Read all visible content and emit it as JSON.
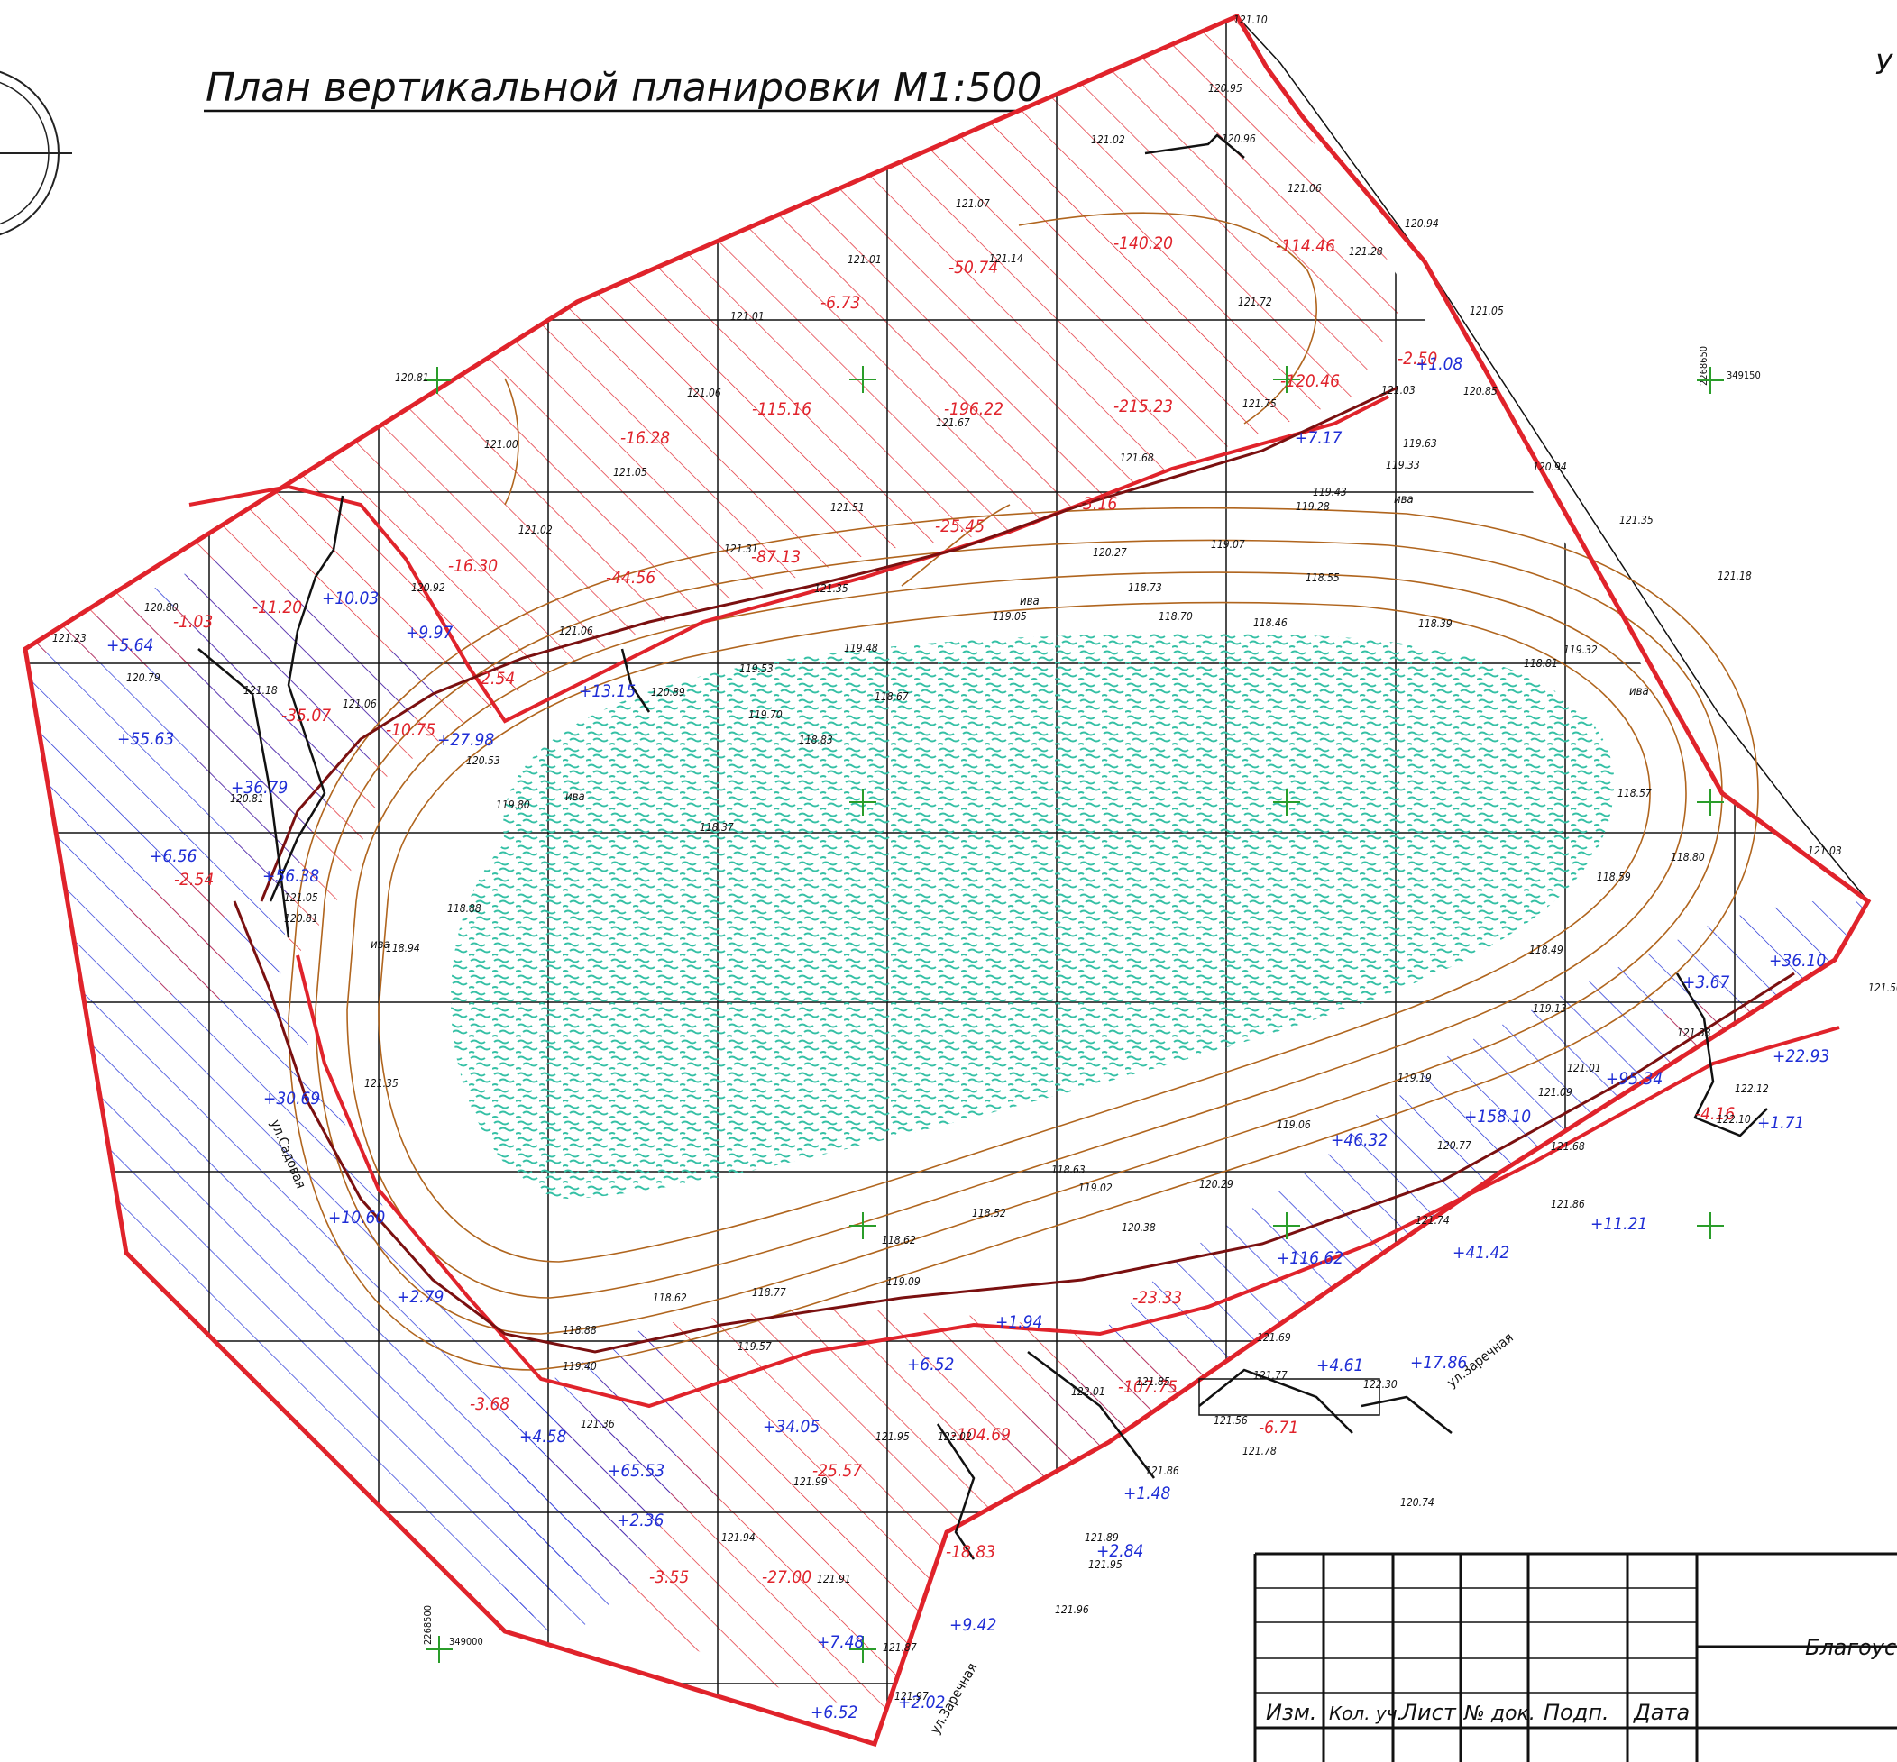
{
  "title": "План вертикальной планировки М1:500",
  "corner_letter": "У",
  "stamp_text": "Благоуст",
  "colors": {
    "cut": "#e0232b",
    "fill": "#1f2ed6",
    "contour": "#b0651e",
    "water": "#35c0a5",
    "outline": "#e0232b",
    "road": "#7a1010",
    "grid": "#111111",
    "geodetic": "#2a9d2a"
  },
  "stamp": {
    "headers": [
      "Изм.",
      "Кол. уч.",
      "Лист",
      "№ док.",
      "Подп.",
      "Дата"
    ]
  },
  "coordinates": [
    {
      "text": "349150"
    },
    {
      "text": "2268650"
    },
    {
      "text": "349000"
    },
    {
      "text": "2268500"
    }
  ],
  "streets": [
    {
      "text": "ул.Садовая"
    },
    {
      "text": "ул.Заречная"
    },
    {
      "text": "ул.Заречная"
    }
  ],
  "volumes_cut": [
    {
      "text": "-6.73"
    },
    {
      "text": "-50.74"
    },
    {
      "text": "-140.20"
    },
    {
      "text": "-114.46"
    },
    {
      "text": "-2.50"
    },
    {
      "text": "-16.28"
    },
    {
      "text": "-115.16"
    },
    {
      "text": "-196.22"
    },
    {
      "text": "-215.23"
    },
    {
      "text": "-120.46"
    },
    {
      "text": "-16.30"
    },
    {
      "text": "-44.56"
    },
    {
      "text": "-87.13"
    },
    {
      "text": "-25.45"
    },
    {
      "text": "-3.16"
    },
    {
      "text": "-11.20"
    },
    {
      "text": "-1.03"
    },
    {
      "text": "-35.07"
    },
    {
      "text": "-10.75"
    },
    {
      "text": "-2.54"
    },
    {
      "text": "-2.54"
    },
    {
      "text": "-3.68"
    },
    {
      "text": "-25.57"
    },
    {
      "text": "-104.69"
    },
    {
      "text": "-107.75"
    },
    {
      "text": "-3.55"
    },
    {
      "text": "-27.00"
    },
    {
      "text": "-18.83"
    },
    {
      "text": "-6.71"
    },
    {
      "text": "-4.16"
    },
    {
      "text": "-23.33"
    }
  ],
  "volumes_fill": [
    {
      "text": "+1.08"
    },
    {
      "text": "+7.17"
    },
    {
      "text": "+10.03"
    },
    {
      "text": "+9.97"
    },
    {
      "text": "+5.64"
    },
    {
      "text": "+55.63"
    },
    {
      "text": "+13.15"
    },
    {
      "text": "+27.98"
    },
    {
      "text": "+36.79"
    },
    {
      "text": "+6.56"
    },
    {
      "text": "+56.38"
    },
    {
      "text": "+30.69"
    },
    {
      "text": "+10.60"
    },
    {
      "text": "+2.79"
    },
    {
      "text": "+4.58"
    },
    {
      "text": "+65.53"
    },
    {
      "text": "+34.05"
    },
    {
      "text": "+6.52"
    },
    {
      "text": "+2.36"
    },
    {
      "text": "+46.32"
    },
    {
      "text": "+158.10"
    },
    {
      "text": "+95.34"
    },
    {
      "text": "+116.62"
    },
    {
      "text": "+41.42"
    },
    {
      "text": "+11.21"
    },
    {
      "text": "+36.10"
    },
    {
      "text": "+3.67"
    },
    {
      "text": "+22.93"
    },
    {
      "text": "+1.71"
    },
    {
      "text": "+4.61"
    },
    {
      "text": "+17.86"
    },
    {
      "text": "+1.48"
    },
    {
      "text": "+9.42"
    },
    {
      "text": "+7.48"
    },
    {
      "text": "+6.52"
    },
    {
      "text": "+2.02"
    },
    {
      "text": "+2.84"
    },
    {
      "text": "+1.94"
    }
  ],
  "spot_elevations": [
    {
      "text": "121.10"
    },
    {
      "text": "120.95"
    },
    {
      "text": "121.02"
    },
    {
      "text": "120.96"
    },
    {
      "text": "121.07"
    },
    {
      "text": "121.01"
    },
    {
      "text": "121.14"
    },
    {
      "text": "121.06"
    },
    {
      "text": "120.94"
    },
    {
      "text": "121.28"
    },
    {
      "text": "121.01"
    },
    {
      "text": "121.72"
    },
    {
      "text": "121.05"
    },
    {
      "text": "120.81"
    },
    {
      "text": "121.06"
    },
    {
      "text": "121.67"
    },
    {
      "text": "121.75"
    },
    {
      "text": "121.03"
    },
    {
      "text": "120.85"
    },
    {
      "text": "121.00"
    },
    {
      "text": "121.05"
    },
    {
      "text": "121.68"
    },
    {
      "text": "119.63"
    },
    {
      "text": "119.33"
    },
    {
      "text": "120.94"
    },
    {
      "text": "121.51"
    },
    {
      "text": "119.43"
    },
    {
      "text": "119.28"
    },
    {
      "text": "121.02"
    },
    {
      "text": "121.31"
    },
    {
      "text": "120.27"
    },
    {
      "text": "119.07"
    },
    {
      "text": "121.35"
    },
    {
      "text": "120.92"
    },
    {
      "text": "121.35"
    },
    {
      "text": "118.73"
    },
    {
      "text": "118.55"
    },
    {
      "text": "121.18"
    },
    {
      "text": "120.80"
    },
    {
      "text": "119.05"
    },
    {
      "text": "118.70"
    },
    {
      "text": "121.23"
    },
    {
      "text": "120.79"
    },
    {
      "text": "121.06"
    },
    {
      "text": "119.48"
    },
    {
      "text": "118.46"
    },
    {
      "text": "118.39"
    },
    {
      "text": "118.81"
    },
    {
      "text": "119.32"
    },
    {
      "text": "121.18"
    },
    {
      "text": "120.89"
    },
    {
      "text": "119.53"
    },
    {
      "text": "118.67"
    },
    {
      "text": "121.06"
    },
    {
      "text": "119.70"
    },
    {
      "text": "118.83"
    },
    {
      "text": "120.81"
    },
    {
      "text": "120.53"
    },
    {
      "text": "119.80"
    },
    {
      "text": "118.37"
    },
    {
      "text": "118.57"
    },
    {
      "text": "121.03"
    },
    {
      "text": "118.80"
    },
    {
      "text": "118.88"
    },
    {
      "text": "118.59"
    },
    {
      "text": "121.05"
    },
    {
      "text": "120.81"
    },
    {
      "text": "118.94"
    },
    {
      "text": "118.49"
    },
    {
      "text": "121.56"
    },
    {
      "text": "119.13"
    },
    {
      "text": "121.33"
    },
    {
      "text": "121.01"
    },
    {
      "text": "119.19"
    },
    {
      "text": "121.09"
    },
    {
      "text": "122.12"
    },
    {
      "text": "121.35"
    },
    {
      "text": "119.06"
    },
    {
      "text": "120.77"
    },
    {
      "text": "121.68"
    },
    {
      "text": "122.10"
    },
    {
      "text": "118.63"
    },
    {
      "text": "119.02"
    },
    {
      "text": "120.29"
    },
    {
      "text": "121.86"
    },
    {
      "text": "118.52"
    },
    {
      "text": "120.38"
    },
    {
      "text": "121.74"
    },
    {
      "text": "118.62"
    },
    {
      "text": "119.09"
    },
    {
      "text": "118.62"
    },
    {
      "text": "118.77"
    },
    {
      "text": "121.69"
    },
    {
      "text": "118.88"
    },
    {
      "text": "119.57"
    },
    {
      "text": "119.40"
    },
    {
      "text": "121.77"
    },
    {
      "text": "122.30"
    },
    {
      "text": "121.56"
    },
    {
      "text": "122.01"
    },
    {
      "text": "121.85"
    },
    {
      "text": "121.36"
    },
    {
      "text": "121.95"
    },
    {
      "text": "122.02"
    },
    {
      "text": "121.78"
    },
    {
      "text": "121.99"
    },
    {
      "text": "121.86"
    },
    {
      "text": "121.94"
    },
    {
      "text": "121.89"
    },
    {
      "text": "121.91"
    },
    {
      "text": "121.87"
    },
    {
      "text": "121.96"
    },
    {
      "text": "121.95"
    },
    {
      "text": "121.97"
    },
    {
      "text": "120.74"
    }
  ],
  "tree_labels": [
    {
      "text": "ива"
    },
    {
      "text": "ива"
    },
    {
      "text": "ива"
    },
    {
      "text": "ива"
    },
    {
      "text": "ива"
    }
  ]
}
